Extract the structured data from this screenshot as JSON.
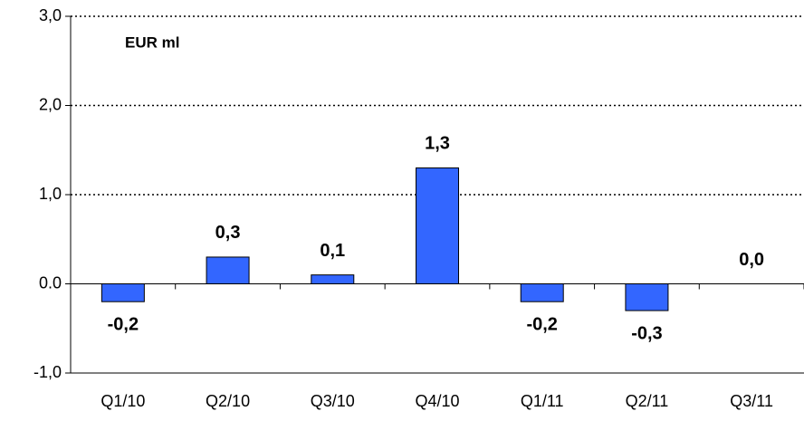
{
  "chart_data": {
    "type": "bar",
    "title": "EUR ml",
    "categories": [
      "Q1/10",
      "Q2/10",
      "Q3/10",
      "Q4/10",
      "Q1/11",
      "Q2/11",
      "Q3/11"
    ],
    "values": [
      -0.2,
      0.3,
      0.1,
      1.3,
      -0.2,
      -0.3,
      0.0
    ],
    "value_labels": [
      "-0,2",
      "0,3",
      "0,1",
      "1,3",
      "-0,2",
      "-0,3",
      "0,0"
    ],
    "color": "#3366ff",
    "ylim": [
      -1,
      3
    ],
    "yticks": [
      {
        "value": -1,
        "label": "-1,0"
      },
      {
        "value": 0,
        "label": "0.0"
      },
      {
        "value": 1,
        "label": "1,0"
      },
      {
        "value": 2,
        "label": "2,0"
      },
      {
        "value": 3,
        "label": "3,0"
      }
    ],
    "grid": true
  }
}
